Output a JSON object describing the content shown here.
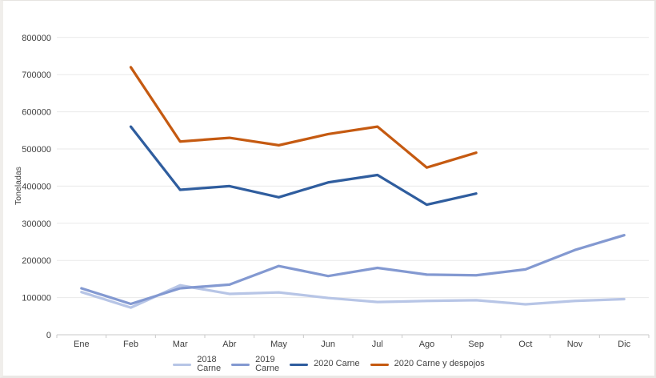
{
  "window": {
    "background": "#ffffff",
    "border_color": "#eae8e5"
  },
  "axis": {
    "ylabel": "Toneladas",
    "tick_color": "#404040",
    "gridline_color": "#e9e9e9",
    "axisline_color": "#c9c9c9"
  },
  "legend": {
    "position": "bottom"
  },
  "chart_data": {
    "type": "line",
    "title": "",
    "xlabel": "",
    "ylabel": "Toneladas",
    "ylim": [
      0,
      800000
    ],
    "ytick_step": 100000,
    "ytick_labels": [
      "0",
      "100000",
      "200000",
      "300000",
      "400000",
      "500000",
      "600000",
      "700000",
      "800000"
    ],
    "grid": "horizontal",
    "legend_position": "bottom",
    "categories": [
      "Ene",
      "Feb",
      "Mar",
      "Abr",
      "May",
      "Jun",
      "Jul",
      "Ago",
      "Sep",
      "Oct",
      "Nov",
      "Dic"
    ],
    "series": [
      {
        "name": "2018 Carne",
        "legend_label": "2018\nCarne",
        "color": "#b7c5e6",
        "values": [
          115000,
          73000,
          133000,
          110000,
          114000,
          99000,
          88000,
          91000,
          93000,
          82000,
          91000,
          96000
        ]
      },
      {
        "name": "2019 Carne",
        "legend_label": "2019\nCarne",
        "color": "#8399d1",
        "values": [
          125000,
          83000,
          125000,
          135000,
          185000,
          158000,
          180000,
          162000,
          160000,
          176000,
          228000,
          268000
        ]
      },
      {
        "name": "2020 Carne",
        "legend_label": "2020 Carne",
        "color": "#2f5d9e",
        "values": [
          null,
          560000,
          390000,
          400000,
          370000,
          410000,
          430000,
          350000,
          380000,
          null,
          null,
          null
        ]
      },
      {
        "name": "2020 Carne y despojos",
        "legend_label": "2020 Carne y despojos",
        "color": "#c55a11",
        "values": [
          null,
          720000,
          520000,
          530000,
          510000,
          540000,
          560000,
          450000,
          490000,
          null,
          null,
          null
        ]
      }
    ]
  }
}
